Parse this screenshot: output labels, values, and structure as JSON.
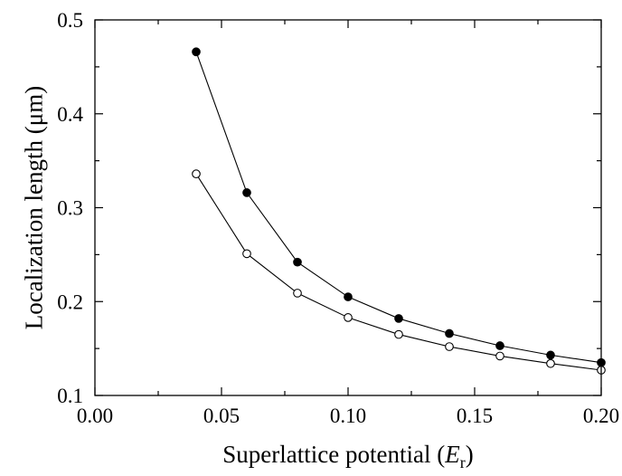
{
  "chart_data": {
    "type": "scatter",
    "title": "",
    "xlabel": {
      "text": "Superlattice potential (",
      "symbol": "E",
      "subscript": "r",
      "close": ")"
    },
    "ylabel": "Localization length (μm)",
    "xlim": [
      0.0,
      0.2
    ],
    "ylim": [
      0.1,
      0.5
    ],
    "x_ticks": [
      0.0,
      0.05,
      0.1,
      0.15,
      0.2
    ],
    "x_tick_labels": [
      "0.00",
      "0.05",
      "0.10",
      "0.15",
      "0.20"
    ],
    "y_ticks": [
      0.1,
      0.2,
      0.3,
      0.4,
      0.5
    ],
    "y_tick_labels": [
      "0.1",
      "0.2",
      "0.3",
      "0.4",
      "0.5"
    ],
    "grid": false,
    "legend": "none",
    "series": [
      {
        "marker": "filled-circle",
        "color": "#000000",
        "x": [
          0.04,
          0.06,
          0.08,
          0.1,
          0.12,
          0.14,
          0.16,
          0.18,
          0.2
        ],
        "y": [
          0.466,
          0.316,
          0.242,
          0.205,
          0.182,
          0.166,
          0.153,
          0.143,
          0.135
        ]
      },
      {
        "marker": "open-circle",
        "color": "#000000",
        "x": [
          0.04,
          0.06,
          0.08,
          0.1,
          0.12,
          0.14,
          0.16,
          0.18,
          0.2
        ],
        "y": [
          0.336,
          0.251,
          0.209,
          0.183,
          0.165,
          0.152,
          0.142,
          0.134,
          0.127
        ]
      }
    ]
  }
}
